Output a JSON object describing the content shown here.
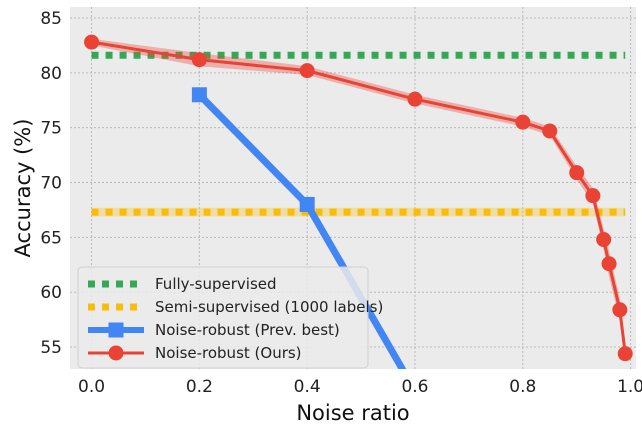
{
  "chart_data": {
    "type": "line",
    "xlabel": "Noise ratio",
    "ylabel": "Accuracy (%)",
    "xlim": [
      -0.04,
      1.01
    ],
    "ylim": [
      53,
      86
    ],
    "x_ticks": [
      0.0,
      0.2,
      0.4,
      0.6,
      0.8,
      1.0
    ],
    "x_tick_labels": [
      "0.0",
      "0.2",
      "0.4",
      "0.6",
      "0.8",
      "1.0"
    ],
    "y_ticks": [
      55,
      60,
      65,
      70,
      75,
      80,
      85
    ],
    "y_tick_labels": [
      "55",
      "60",
      "65",
      "70",
      "75",
      "80",
      "85"
    ],
    "grid": true,
    "legend_position": "lower-left",
    "series": [
      {
        "name": "Fully-supervised",
        "style": "dotted-horizontal",
        "color": "#34a853",
        "x": [
          0.0,
          0.99
        ],
        "y": [
          81.6,
          81.6
        ]
      },
      {
        "name": "Semi-supervised (1000 labels)",
        "style": "dotted-horizontal-band",
        "color": "#fbbc05",
        "x": [
          0.0,
          0.99
        ],
        "y": [
          67.3,
          67.3
        ],
        "band": [
          66.9,
          67.7
        ]
      },
      {
        "name": "Noise-robust (Prev. best)",
        "style": "line-square",
        "color": "#4285f4",
        "x": [
          0.2,
          0.4,
          0.6
        ],
        "y": [
          78.0,
          68.0,
          51.0
        ],
        "marker_x": [
          0.2,
          0.4
        ]
      },
      {
        "name": "Noise-robust (Ours)",
        "style": "line-circle-band",
        "color": "#ea4335",
        "x": [
          0.0,
          0.2,
          0.4,
          0.6,
          0.8,
          0.85,
          0.9,
          0.93,
          0.95,
          0.96,
          0.98,
          0.99
        ],
        "y": [
          82.8,
          81.2,
          80.2,
          77.6,
          75.5,
          74.7,
          70.9,
          68.8,
          64.8,
          62.6,
          58.4,
          54.4
        ],
        "band_low": [
          82.5,
          80.6,
          79.8,
          77.2,
          75.1,
          74.3,
          70.3,
          68.1,
          63.8,
          61.4,
          57.4,
          53.9
        ],
        "band_high": [
          83.1,
          81.8,
          80.6,
          78.0,
          75.9,
          75.1,
          71.5,
          69.5,
          65.8,
          63.8,
          59.4,
          54.9
        ]
      }
    ]
  }
}
